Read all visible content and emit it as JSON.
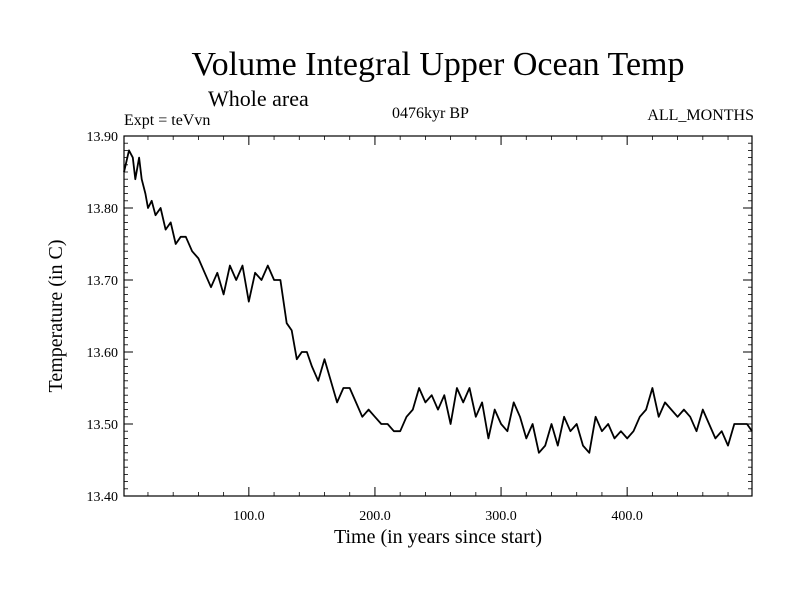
{
  "chart_data": {
    "type": "line",
    "title": "Volume Integral Upper Ocean Temp",
    "subtitle": "Whole area",
    "annotations": {
      "experiment": "Expt = teVvn",
      "period": "0476kyr BP",
      "months": "ALL_MONTHS"
    },
    "xlabel": "Time (in years since start)",
    "ylabel": "Temperature (in C)",
    "xlim": [
      1,
      499
    ],
    "ylim": [
      13.4,
      13.9
    ],
    "x_ticks": [
      100,
      200,
      300,
      400
    ],
    "x_tick_labels": [
      "100.0",
      "200.0",
      "300.0",
      "400.0"
    ],
    "y_ticks": [
      13.4,
      13.5,
      13.6,
      13.7,
      13.8,
      13.9
    ],
    "y_tick_labels": [
      "13.40",
      "13.50",
      "13.60",
      "13.70",
      "13.80",
      "13.90"
    ],
    "grid": false,
    "series": [
      {
        "color": "#000000",
        "x": [
          1,
          5,
          8,
          10,
          13,
          15,
          18,
          20,
          23,
          26,
          30,
          34,
          38,
          42,
          46,
          50,
          55,
          60,
          65,
          70,
          75,
          80,
          85,
          90,
          95,
          100,
          105,
          110,
          115,
          120,
          125,
          130,
          134,
          138,
          142,
          146,
          150,
          155,
          160,
          165,
          170,
          175,
          180,
          185,
          190,
          195,
          200,
          205,
          210,
          215,
          220,
          225,
          230,
          235,
          240,
          245,
          250,
          255,
          260,
          265,
          270,
          275,
          280,
          285,
          290,
          295,
          300,
          305,
          310,
          315,
          320,
          325,
          330,
          335,
          340,
          345,
          350,
          355,
          360,
          365,
          370,
          375,
          380,
          385,
          390,
          395,
          400,
          405,
          410,
          415,
          420,
          425,
          430,
          435,
          440,
          445,
          450,
          455,
          460,
          465,
          470,
          475,
          480,
          485,
          490,
          495,
          499
        ],
        "values": [
          13.85,
          13.88,
          13.87,
          13.84,
          13.87,
          13.84,
          13.82,
          13.8,
          13.81,
          13.79,
          13.8,
          13.77,
          13.78,
          13.75,
          13.76,
          13.76,
          13.74,
          13.73,
          13.71,
          13.69,
          13.71,
          13.68,
          13.72,
          13.7,
          13.72,
          13.67,
          13.71,
          13.7,
          13.72,
          13.7,
          13.7,
          13.64,
          13.63,
          13.59,
          13.6,
          13.6,
          13.58,
          13.56,
          13.59,
          13.56,
          13.53,
          13.55,
          13.55,
          13.53,
          13.51,
          13.52,
          13.51,
          13.5,
          13.5,
          13.49,
          13.49,
          13.51,
          13.52,
          13.55,
          13.53,
          13.54,
          13.52,
          13.54,
          13.5,
          13.55,
          13.53,
          13.55,
          13.51,
          13.53,
          13.48,
          13.52,
          13.5,
          13.49,
          13.53,
          13.51,
          13.48,
          13.5,
          13.46,
          13.47,
          13.5,
          13.47,
          13.51,
          13.49,
          13.5,
          13.47,
          13.46,
          13.51,
          13.49,
          13.5,
          13.48,
          13.49,
          13.48,
          13.49,
          13.51,
          13.52,
          13.55,
          13.51,
          13.53,
          13.52,
          13.51,
          13.52,
          13.51,
          13.49,
          13.52,
          13.5,
          13.48,
          13.49,
          13.47,
          13.5,
          13.5,
          13.5,
          13.49
        ]
      }
    ]
  }
}
